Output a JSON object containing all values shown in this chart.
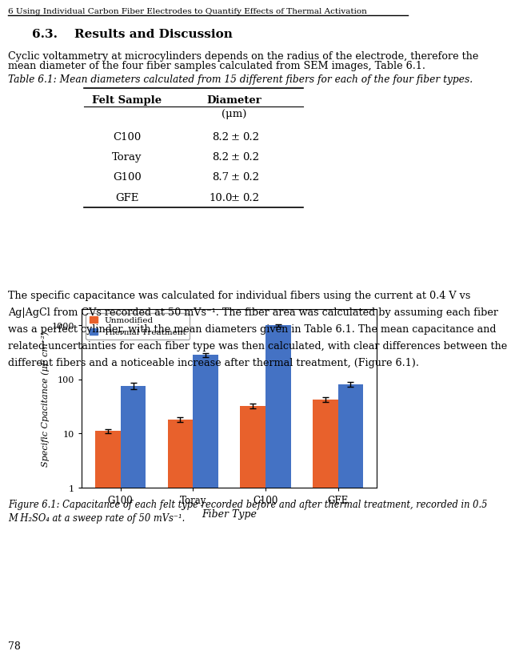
{
  "page_title": "6 Using Individual Carbon Fiber Electrodes to Quantify Effects of Thermal Activation",
  "section_heading": "6.3.    Results and Discussion",
  "para1_line1": "Cyclic voltammetry at microcylinders depends on the radius of the electrode, therefore the",
  "para1_line2": "mean diameter of the four fiber samples calculated from SEM images, Table 6.1.",
  "table_caption": "Table 6.1: Mean diameters calculated from 15 different fibers for each of the four fiber types.",
  "table_col1_header": "Felt Sample",
  "table_col2_header": "Diameter",
  "table_subheader": "(μm)",
  "table_rows": [
    [
      "C100",
      "8.2",
      "±",
      "0.2"
    ],
    [
      "Toray",
      "8.2",
      "±",
      "0.2"
    ],
    [
      "G100",
      "8.7",
      "±",
      "0.2"
    ],
    [
      "GFE",
      "10.0",
      "±",
      "0.2"
    ]
  ],
  "para2_lines": [
    "The specific capacitance was calculated for individual fibers using the current at 0.4 V vs",
    "Ag|AgCl from CVs recorded at 50 mVs⁻¹. The fiber area was calculated by assuming each fiber",
    "was a perfect cylinder, with the mean diameters given in Table 6.1. The mean capacitance and",
    "related uncertainties for each fiber type was then calculated, with clear differences between the",
    "different fibers and a noticeable increase after thermal treatment, (Figure 6.1)."
  ],
  "fig_caption_line1": "Figure 6.1: Capacitance of each felt type recorded before and after thermal treatment, recorded in 0.5",
  "fig_caption_line2": "M H₂SO₄ at a sweep rate of 50 mVs⁻¹.",
  "page_number": "78",
  "chart": {
    "categories": [
      "G100",
      "Toray",
      "C100",
      "GFE"
    ],
    "unmodified_values": [
      11,
      18,
      32,
      42
    ],
    "unmodified_errors": [
      1.0,
      2.0,
      3.0,
      4.0
    ],
    "thermal_values": [
      75,
      280,
      1000,
      80
    ],
    "thermal_errors": [
      10,
      20,
      50,
      8
    ],
    "ylabel": "Specific Cpacitance (μF cm⁻²)",
    "xlabel": "Fiber Type",
    "yticks": [
      1,
      10,
      100,
      1000
    ],
    "ytick_labels": [
      "1",
      "10",
      "100",
      "1000"
    ],
    "ylim_min": 1,
    "ylim_max": 2000,
    "legend_labels": [
      "Unmodified",
      "Thermal Treatment"
    ],
    "bar_color_unmodified": "#E8612C",
    "bar_color_thermal": "#4472C4",
    "bar_width": 0.35
  }
}
